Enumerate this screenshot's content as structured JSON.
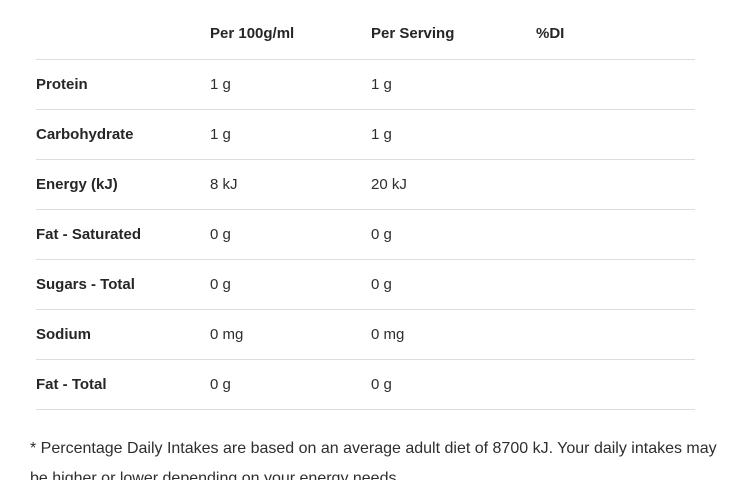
{
  "table": {
    "columns": [
      {
        "label": ""
      },
      {
        "label": "Per 100g/ml"
      },
      {
        "label": "Per Serving"
      },
      {
        "label": "%DI"
      }
    ],
    "rows": [
      {
        "label": "Protein",
        "per_100": "1 g",
        "per_serving": "1 g",
        "di": ""
      },
      {
        "label": "Carbohydrate",
        "per_100": "1 g",
        "per_serving": "1 g",
        "di": ""
      },
      {
        "label": "Energy (kJ)",
        "per_100": "8 kJ",
        "per_serving": "20 kJ",
        "di": ""
      },
      {
        "label": "Fat - Saturated",
        "per_100": "0 g",
        "per_serving": "0 g",
        "di": ""
      },
      {
        "label": "Sugars - Total",
        "per_100": "0 g",
        "per_serving": "0 g",
        "di": ""
      },
      {
        "label": "Sodium",
        "per_100": "0 mg",
        "per_serving": "0 mg",
        "di": ""
      },
      {
        "label": "Fat - Total",
        "per_100": "0 g",
        "per_serving": "0 g",
        "di": ""
      }
    ]
  },
  "footnote": "* Percentage Daily Intakes are based on an average adult diet of 8700 kJ. Your daily intakes may be higher or lower depending on your energy needs.",
  "colors": {
    "text": "#262626",
    "divider": "#dddddd",
    "background": "#ffffff"
  }
}
